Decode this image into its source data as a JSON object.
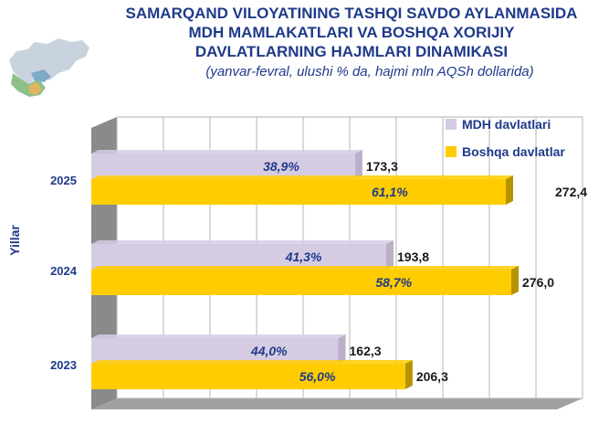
{
  "title_lines": [
    "SAMARQAND VILOYATINING TASHQI SAVDO AYLANMASIDA",
    "MDH MAMLAKATLARI VA BOSHQA XORIJIY",
    "DAVLATLARNING HAJMLARI DINAMIKASI"
  ],
  "subtitle": "(yanvar-fevral, ulushi % da, hajmi mln AQSh dollarida)",
  "map_icon": "russia-region-map-icon",
  "colors": {
    "mdh": "#d5cce3",
    "boshqa": "#ffcc00",
    "title": "#1f3a8a"
  },
  "chart_data": {
    "type": "bar",
    "orientation": "horizontal",
    "ylabel": "Yillar",
    "categories": [
      "2025",
      "2024",
      "2023"
    ],
    "series": [
      {
        "name": "MDH davlatlari",
        "values": [
          173.3,
          193.8,
          162.3
        ],
        "labels": [
          "173,3",
          "193,8",
          "162,3"
        ],
        "shares": [
          "38,9%",
          "41,3%",
          "44,0%"
        ]
      },
      {
        "name": "Boshqa davlatlar",
        "values": [
          272.4,
          276.0,
          206.3
        ],
        "labels": [
          "272,4",
          "276,0",
          "206,3"
        ],
        "shares": [
          "61,1%",
          "58,7%",
          "56,0%"
        ]
      }
    ],
    "xlim": [
      0,
      300
    ],
    "grid": true,
    "legend_position": "top-right"
  }
}
